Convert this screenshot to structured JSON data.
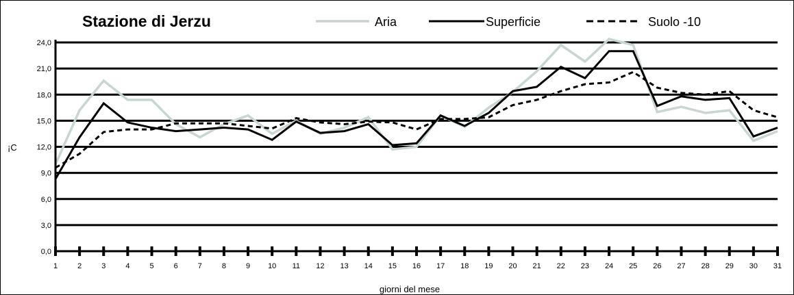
{
  "chart_data": {
    "type": "line",
    "title": "Stazione di Jerzu",
    "xlabel": "giorni del mese",
    "ylabel": "¡C",
    "ylim": [
      0,
      24
    ],
    "yticks": [
      "0,0",
      "3,0",
      "6,0",
      "9,0",
      "12,0",
      "15,0",
      "18,0",
      "21,0",
      "24,0"
    ],
    "x": [
      1,
      2,
      3,
      4,
      5,
      6,
      7,
      8,
      9,
      10,
      11,
      12,
      13,
      14,
      15,
      16,
      17,
      18,
      19,
      20,
      21,
      22,
      23,
      24,
      25,
      26,
      27,
      28,
      29,
      30,
      31
    ],
    "grid": true,
    "legend_position": "top",
    "series": [
      {
        "name": "Aria",
        "color": "#c8d6cf",
        "style": "solid",
        "values": [
          10.0,
          16.2,
          19.6,
          17.4,
          17.4,
          14.6,
          13.1,
          14.6,
          15.6,
          13.5,
          15.0,
          13.5,
          14.2,
          15.4,
          11.7,
          12.0,
          15.6,
          14.3,
          16.5,
          18.3,
          20.7,
          23.7,
          21.8,
          24.4,
          23.7,
          16.0,
          16.6,
          15.9,
          16.2,
          12.7,
          13.8
        ]
      },
      {
        "name": "Superficie",
        "color": "#000000",
        "style": "solid",
        "values": [
          8.3,
          13.1,
          17.0,
          14.8,
          14.2,
          13.8,
          14.0,
          14.2,
          14.0,
          12.8,
          14.9,
          13.6,
          13.8,
          14.6,
          12.2,
          12.4,
          15.6,
          14.4,
          15.9,
          18.4,
          18.9,
          21.2,
          19.9,
          23.0,
          23.0,
          16.7,
          17.8,
          17.4,
          17.6,
          13.2,
          14.2
        ]
      },
      {
        "name": "Suolo -10",
        "color": "#000000",
        "style": "dashed",
        "values": [
          9.6,
          11.2,
          13.7,
          14.0,
          14.0,
          14.7,
          14.7,
          14.7,
          14.4,
          14.1,
          15.3,
          14.8,
          14.6,
          14.9,
          14.8,
          14.0,
          15.2,
          15.2,
          15.4,
          16.8,
          17.4,
          18.4,
          19.2,
          19.4,
          20.6,
          18.8,
          18.2,
          18.0,
          18.4,
          16.2,
          15.4
        ]
      }
    ]
  }
}
